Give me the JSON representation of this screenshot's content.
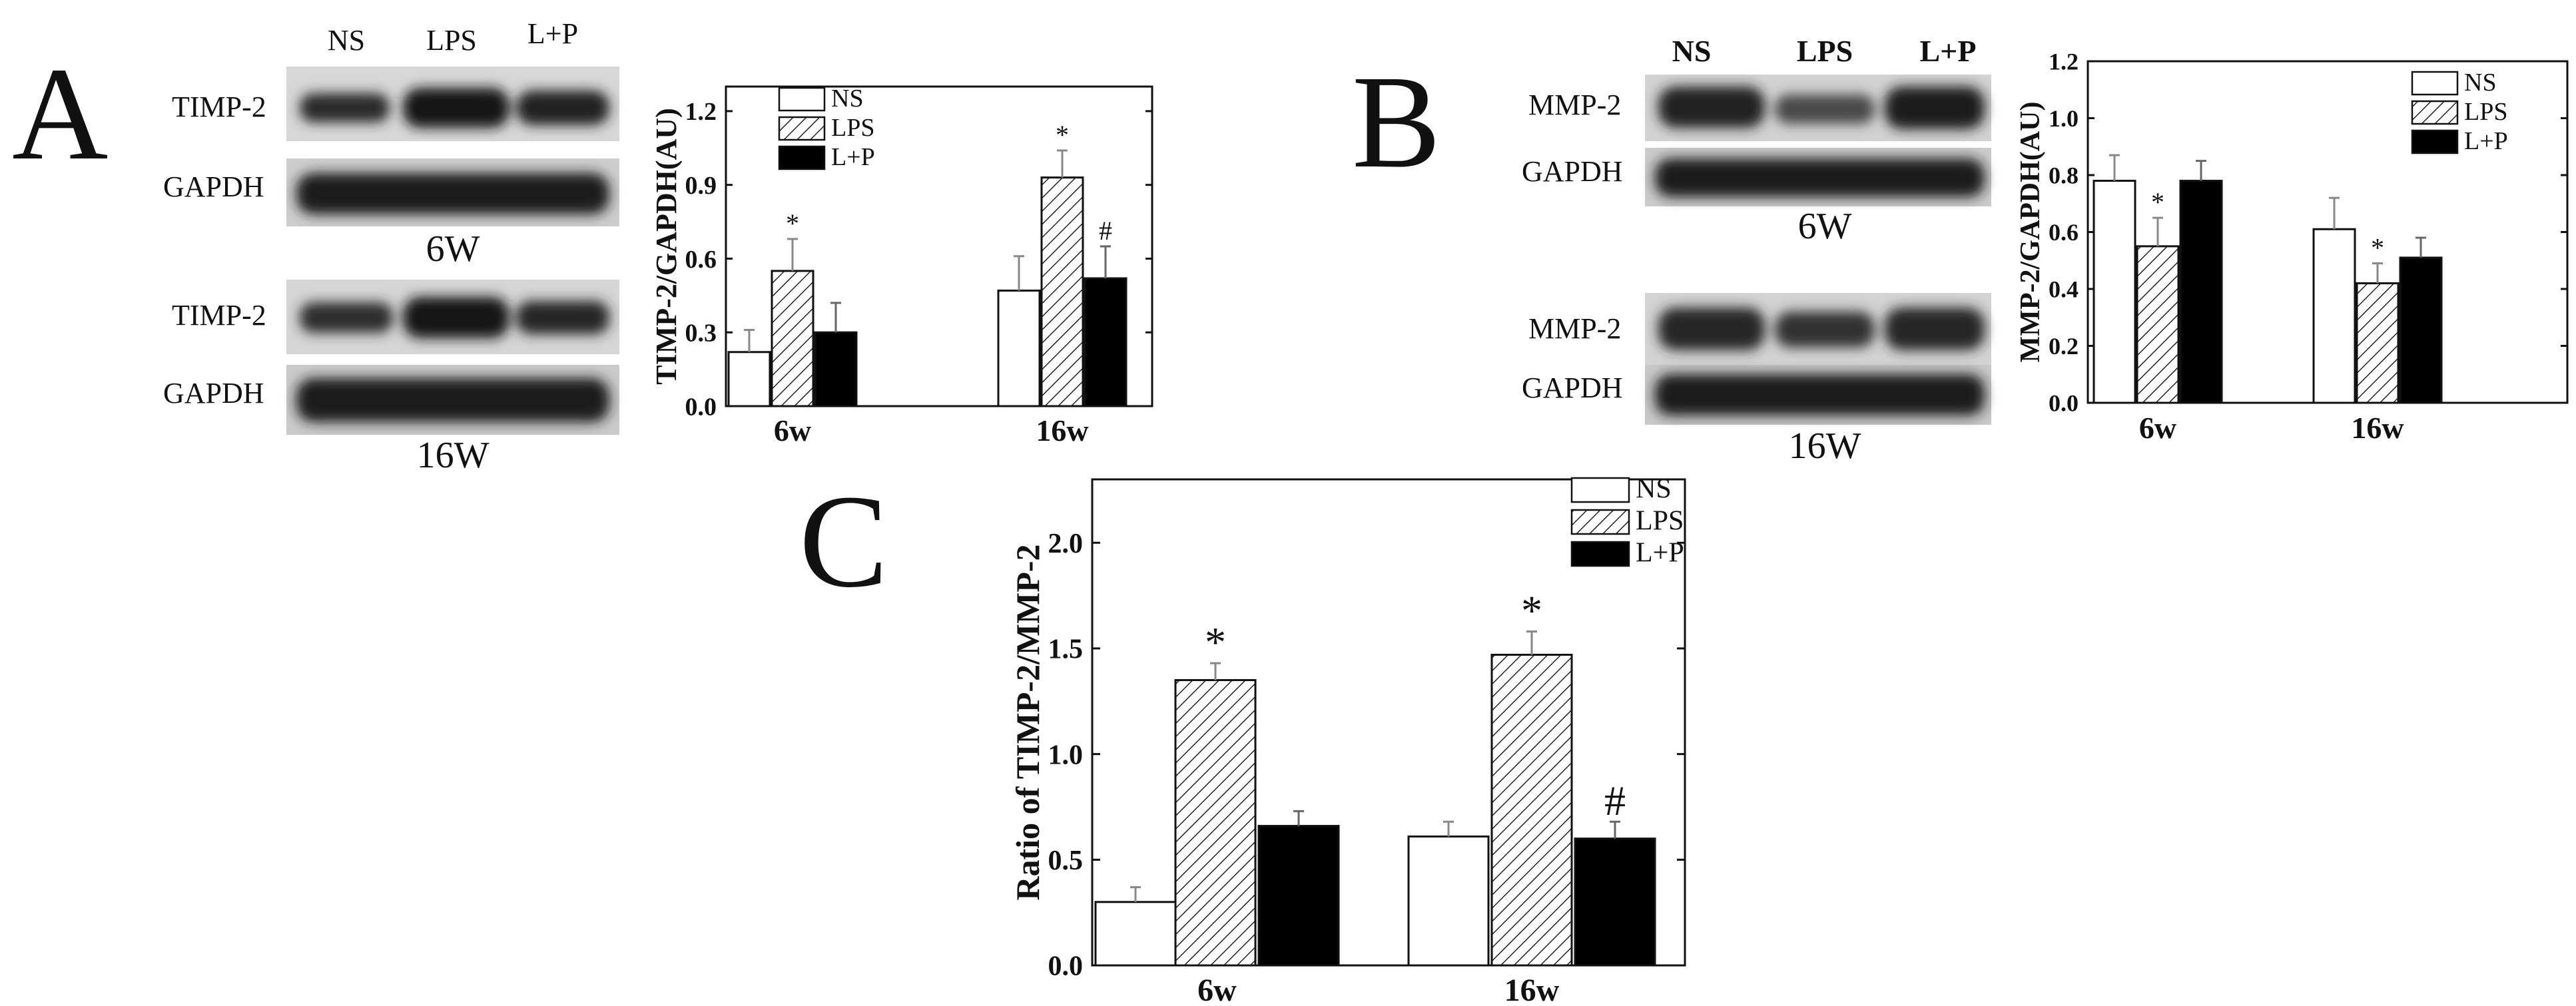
{
  "panels": {
    "A": {
      "letter": "A",
      "blot": {
        "lanes": [
          "NS",
          "LPS",
          "L+P"
        ],
        "rows_6w": [
          "TIMP-2",
          "GAPDH"
        ],
        "rows_16w": [
          "TIMP-2",
          "GAPDH"
        ],
        "caption_6w": "6W",
        "caption_16w": "16W"
      }
    },
    "B": {
      "letter": "B",
      "blot": {
        "lanes": [
          "NS",
          "LPS",
          "L+P"
        ],
        "rows_6w": [
          "MMP-2",
          "GAPDH"
        ],
        "rows_16w": [
          "MMP-2",
          "GAPDH"
        ],
        "caption_6w": "6W",
        "caption_16w": "16W"
      }
    },
    "C": {
      "letter": "C"
    }
  },
  "chart_data": [
    {
      "id": "A",
      "type": "bar",
      "categories": [
        "6w",
        "16w"
      ],
      "ylabel": "TIMP-2/GAPDH(AU)",
      "ylim": [
        0,
        1.3
      ],
      "yticks": [
        "0.0",
        "0.3",
        "0.6",
        "0.9",
        "1.2"
      ],
      "legend": [
        "NS",
        "LPS",
        "L+P"
      ],
      "legend_position": "top-left",
      "series": [
        {
          "name": "NS",
          "values": [
            0.22,
            0.47
          ],
          "errors": [
            0.09,
            0.14
          ],
          "marks": [
            "",
            ""
          ]
        },
        {
          "name": "LPS",
          "values": [
            0.55,
            0.93
          ],
          "errors": [
            0.13,
            0.11
          ],
          "marks": [
            "*",
            "*"
          ]
        },
        {
          "name": "L+P",
          "values": [
            0.3,
            0.52
          ],
          "errors": [
            0.12,
            0.13
          ],
          "marks": [
            "",
            "#"
          ]
        }
      ]
    },
    {
      "id": "B",
      "type": "bar",
      "categories": [
        "6w",
        "16w"
      ],
      "ylabel": "MMP-2/GAPDH(AU)",
      "ylim": [
        0,
        1.2
      ],
      "yticks": [
        "0.0",
        "0.2",
        "0.4",
        "0.6",
        "0.8",
        "1.0",
        "1.2"
      ],
      "legend": [
        "NS",
        "LPS",
        "L+P"
      ],
      "legend_position": "top-right",
      "series": [
        {
          "name": "NS",
          "values": [
            0.78,
            0.61
          ],
          "errors": [
            0.09,
            0.11
          ],
          "marks": [
            "",
            ""
          ]
        },
        {
          "name": "LPS",
          "values": [
            0.55,
            0.42
          ],
          "errors": [
            0.1,
            0.07
          ],
          "marks": [
            "*",
            "*"
          ]
        },
        {
          "name": "L+P",
          "values": [
            0.78,
            0.51
          ],
          "errors": [
            0.07,
            0.07
          ],
          "marks": [
            "",
            ""
          ]
        }
      ]
    },
    {
      "id": "C",
      "type": "bar",
      "categories": [
        "6w",
        "16w"
      ],
      "ylabel": "Ratio of TIMP-2/MMP-2",
      "ylim": [
        0,
        2.3
      ],
      "yticks": [
        "0.0",
        "0.5",
        "1.0",
        "1.5",
        "2.0"
      ],
      "legend": [
        "NS",
        "LPS",
        "L+P"
      ],
      "legend_position": "top-right",
      "series": [
        {
          "name": "NS",
          "values": [
            0.3,
            0.61
          ],
          "errors": [
            0.07,
            0.07
          ],
          "marks": [
            "",
            ""
          ]
        },
        {
          "name": "LPS",
          "values": [
            1.35,
            1.47
          ],
          "errors": [
            0.08,
            0.11
          ],
          "marks": [
            "*",
            "*"
          ]
        },
        {
          "name": "L+P",
          "values": [
            0.66,
            0.6
          ],
          "errors": [
            0.07,
            0.08
          ],
          "marks": [
            "",
            "#"
          ]
        }
      ]
    }
  ]
}
